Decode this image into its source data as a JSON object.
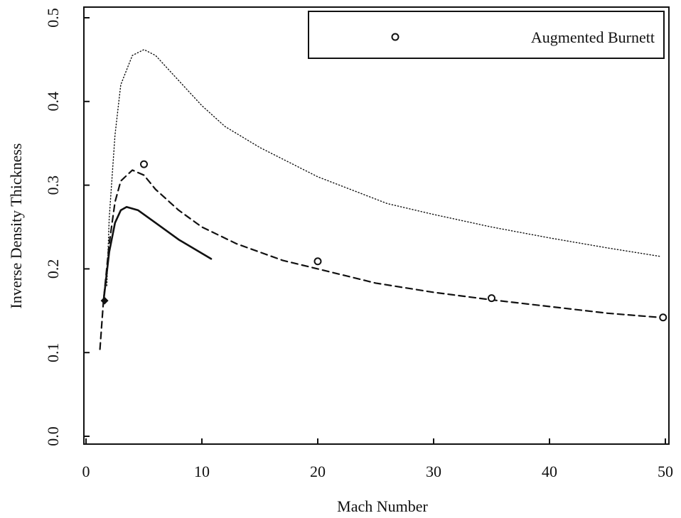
{
  "chart_data": {
    "type": "line",
    "title": "",
    "xlabel": "Mach Number",
    "ylabel": "Inverse Density Thickness",
    "xlim": [
      0,
      50
    ],
    "ylim": [
      0,
      0.5
    ],
    "xticks": [
      "0",
      "10",
      "20",
      "30",
      "40",
      "50"
    ],
    "yticks": [
      "0.0",
      "0.1",
      "0.2",
      "0.3",
      "0.4",
      "0.5"
    ],
    "grid": false,
    "legend_position": "top-right",
    "colors": {
      "ink": "#111111"
    },
    "series": [
      {
        "name": "",
        "style": "dotted",
        "points": [
          [
            1.8,
            0.18
          ],
          [
            2.0,
            0.26
          ],
          [
            2.5,
            0.36
          ],
          [
            3.0,
            0.42
          ],
          [
            4.0,
            0.455
          ],
          [
            5.0,
            0.462
          ],
          [
            6.0,
            0.455
          ],
          [
            8.0,
            0.425
          ],
          [
            10.0,
            0.395
          ],
          [
            12.0,
            0.37
          ],
          [
            15.0,
            0.345
          ],
          [
            20.0,
            0.31
          ],
          [
            26.0,
            0.278
          ],
          [
            30.0,
            0.265
          ],
          [
            35.0,
            0.25
          ],
          [
            40.0,
            0.237
          ],
          [
            45.0,
            0.225
          ],
          [
            49.5,
            0.215
          ]
        ]
      },
      {
        "name": "",
        "style": "dashed",
        "points": [
          [
            1.2,
            0.104
          ],
          [
            1.5,
            0.16
          ],
          [
            2.0,
            0.23
          ],
          [
            2.5,
            0.28
          ],
          [
            3.0,
            0.305
          ],
          [
            4.0,
            0.318
          ],
          [
            5.0,
            0.312
          ],
          [
            6.0,
            0.295
          ],
          [
            8.0,
            0.27
          ],
          [
            10.0,
            0.25
          ],
          [
            13.0,
            0.23
          ],
          [
            17.0,
            0.21
          ],
          [
            20.0,
            0.2
          ],
          [
            25.0,
            0.183
          ],
          [
            30.0,
            0.172
          ],
          [
            35.0,
            0.163
          ],
          [
            40.0,
            0.155
          ],
          [
            45.0,
            0.147
          ],
          [
            49.5,
            0.142
          ]
        ]
      },
      {
        "name": "",
        "style": "solid",
        "points": [
          [
            1.5,
            0.16
          ],
          [
            2.0,
            0.22
          ],
          [
            2.5,
            0.255
          ],
          [
            3.0,
            0.27
          ],
          [
            3.5,
            0.274
          ],
          [
            4.5,
            0.27
          ],
          [
            6.0,
            0.255
          ],
          [
            8.0,
            0.235
          ],
          [
            10.8,
            0.212
          ]
        ]
      },
      {
        "name": "Augmented Burnett",
        "style": "markers",
        "points": [
          [
            5.0,
            0.325
          ],
          [
            20.0,
            0.209
          ],
          [
            35.0,
            0.165
          ],
          [
            49.8,
            0.142
          ]
        ]
      }
    ],
    "markers": [
      {
        "shape": "diamond",
        "x": 1.6,
        "y": 0.162
      }
    ]
  }
}
